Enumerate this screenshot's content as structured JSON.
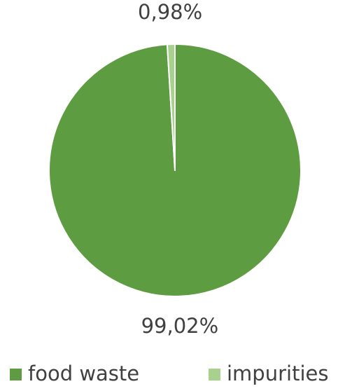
{
  "chart_data": {
    "type": "pie",
    "categories": [
      "food waste",
      "impurities"
    ],
    "values": [
      99.02,
      0.98
    ],
    "value_labels": [
      "99,02%",
      "0,98%"
    ],
    "colors": [
      "#5e9c41",
      "#a9d18e"
    ],
    "legend": "bottom"
  }
}
